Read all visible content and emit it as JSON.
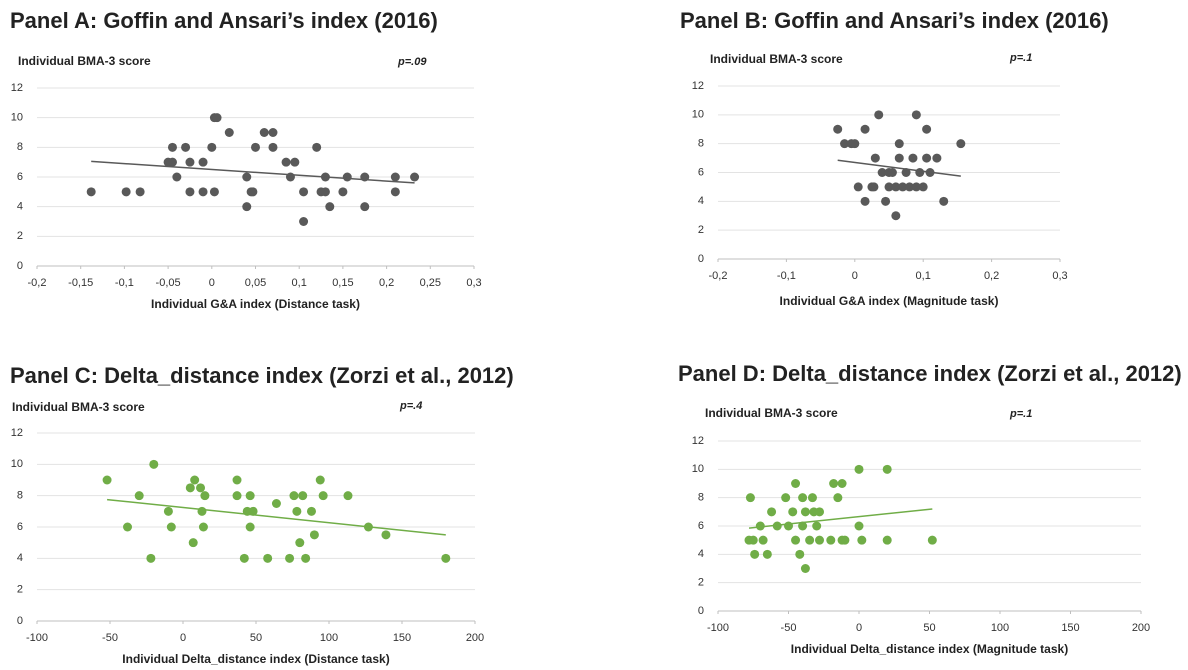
{
  "chart_data": [
    {
      "type": "scatter",
      "title": "Panel A: Goffin and Ansari’s index (2016)",
      "y_label": "Individual BMA-3 score",
      "annotation": "p=.09",
      "x_label": "Individual G&A index (Distance task)",
      "color": "#595959",
      "x": [
        -0.138,
        -0.098,
        -0.082,
        -0.05,
        -0.045,
        -0.045,
        -0.04,
        -0.03,
        -0.025,
        -0.025,
        -0.01,
        -0.01,
        0,
        0.003,
        0.003,
        0.006,
        0.02,
        0.04,
        0.04,
        0.045,
        0.047,
        0.05,
        0.06,
        0.07,
        0.07,
        0.085,
        0.09,
        0.095,
        0.105,
        0.105,
        0.12,
        0.125,
        0.13,
        0.13,
        0.135,
        0.15,
        0.155,
        0.175,
        0.175,
        0.21,
        0.21,
        0.232
      ],
      "values": [
        5,
        5,
        5,
        7,
        7,
        8,
        6,
        8,
        5,
        7,
        7,
        5,
        8,
        10,
        5,
        10,
        9,
        4,
        6,
        5,
        5,
        8,
        9,
        9,
        8,
        7,
        6,
        7,
        3,
        5,
        8,
        5,
        5,
        6,
        4,
        5,
        6,
        4,
        6,
        6,
        5,
        6
      ],
      "trendline": {
        "x": [
          -0.138,
          0.232
        ],
        "values": [
          7.05,
          5.6
        ]
      },
      "xlim": [
        -0.2,
        0.3
      ],
      "ylim": [
        0,
        12
      ],
      "xticks": [
        {
          "value": -0.2,
          "label": "-0,2"
        },
        {
          "value": -0.15,
          "label": "-0,15"
        },
        {
          "value": -0.1,
          "label": "-0,1"
        },
        {
          "value": -0.05,
          "label": "-0,05"
        },
        0,
        {
          "value": 0.05,
          "label": "0,05"
        },
        {
          "value": 0.1,
          "label": "0,1"
        },
        {
          "value": 0.15,
          "label": "0,15"
        },
        {
          "value": 0.2,
          "label": "0,2"
        },
        {
          "value": 0.25,
          "label": "0,25"
        },
        {
          "value": 0.3,
          "label": "0,3"
        }
      ],
      "yticks": [
        0,
        2,
        4,
        6,
        8,
        10,
        12
      ],
      "grid": true
    },
    {
      "type": "scatter",
      "title": "Panel B: Goffin and Ansari’s index (2016)",
      "y_label": "Individual BMA-3 score",
      "annotation": "p=.1",
      "x_label": "Individual G&A index (Magnitude task)",
      "color": "#595959",
      "x": [
        -0.025,
        -0.015,
        -0.005,
        0,
        0.005,
        0.015,
        0.015,
        0.025,
        0.028,
        0.03,
        0.035,
        0.04,
        0.045,
        0.05,
        0.05,
        0.055,
        0.06,
        0.06,
        0.065,
        0.065,
        0.07,
        0.075,
        0.08,
        0.085,
        0.09,
        0.09,
        0.095,
        0.1,
        0.105,
        0.105,
        0.11,
        0.12,
        0.13,
        0.155
      ],
      "values": [
        9,
        8,
        8,
        8,
        5,
        9,
        4,
        5,
        5,
        7,
        10,
        6,
        4,
        6,
        5,
        6,
        5,
        3,
        8,
        7,
        5,
        6,
        5,
        7,
        10,
        5,
        6,
        5,
        7,
        9,
        6,
        7,
        4,
        8
      ],
      "trendline": {
        "x": [
          -0.025,
          0.155
        ],
        "values": [
          6.85,
          5.75
        ]
      },
      "xlim": [
        -0.2,
        0.3
      ],
      "ylim": [
        0,
        12
      ],
      "xticks": [
        {
          "value": -0.2,
          "label": "-0,2"
        },
        {
          "value": -0.1,
          "label": "-0,1"
        },
        0,
        {
          "value": 0.1,
          "label": "0,1"
        },
        {
          "value": 0.2,
          "label": "0,2"
        },
        {
          "value": 0.3,
          "label": "0,3"
        }
      ],
      "yticks": [
        0,
        2,
        4,
        6,
        8,
        10,
        12
      ],
      "grid": true
    },
    {
      "type": "scatter",
      "title": "Panel C: Delta_distance index (Zorzi et al., 2012)",
      "y_label": "Individual BMA-3 score",
      "annotation": "p=.4",
      "x_label": "Individual Delta_distance index (Distance task)",
      "color": "#70ad47",
      "x": [
        -52,
        -38,
        -30,
        -22,
        -20,
        -10,
        -8,
        5,
        7,
        8,
        12,
        13,
        14,
        15,
        37,
        37,
        42,
        44,
        46,
        46,
        48,
        58,
        64,
        73,
        76,
        78,
        80,
        82,
        84,
        88,
        90,
        94,
        96,
        113,
        127,
        139,
        180
      ],
      "values": [
        9,
        6,
        8,
        4,
        10,
        7,
        6,
        8.5,
        5,
        9,
        8.5,
        7,
        6,
        8,
        9,
        8,
        4,
        7,
        8,
        6,
        7,
        4,
        7.5,
        4,
        8,
        7,
        5,
        8,
        4,
        7,
        5.5,
        9,
        8,
        8,
        6,
        5.5,
        4
      ],
      "trendline": {
        "x": [
          -52,
          180
        ],
        "values": [
          7.75,
          5.5
        ]
      },
      "xlim": [
        -100,
        200
      ],
      "ylim": [
        0,
        12
      ],
      "xticks": [
        -100,
        -50,
        0,
        50,
        100,
        150,
        200
      ],
      "yticks": [
        0,
        2,
        4,
        6,
        8,
        10,
        12
      ],
      "grid": true
    },
    {
      "type": "scatter",
      "title": "Panel D: Delta_distance index (Zorzi et al., 2012)",
      "y_label": "Individual BMA-3 score",
      "annotation": "p=.1",
      "x_label": "Individual Delta_distance index (Magnitude task)",
      "color": "#70ad47",
      "x": [
        -78,
        -77,
        -75,
        -74,
        -70,
        -68,
        -65,
        -62,
        -58,
        -52,
        -50,
        -47,
        -45,
        -45,
        -42,
        -40,
        -40,
        -38,
        -38,
        -35,
        -33,
        -32,
        -30,
        -28,
        -28,
        -20,
        -18,
        -15,
        -12,
        -12,
        -10,
        0,
        0,
        2,
        20,
        20,
        52
      ],
      "values": [
        5,
        8,
        5,
        4,
        6,
        5,
        4,
        7,
        6,
        8,
        6,
        7,
        9,
        5,
        4,
        8,
        6,
        7,
        3,
        5,
        8,
        7,
        6,
        7,
        5,
        5,
        9,
        8,
        9,
        5,
        5,
        10,
        6,
        5,
        10,
        5,
        5
      ],
      "trendline": {
        "x": [
          -78,
          52
        ],
        "values": [
          5.85,
          7.2
        ]
      },
      "xlim": [
        -100,
        200
      ],
      "ylim": [
        0,
        12
      ],
      "xticks": [
        -100,
        -50,
        0,
        50,
        100,
        150,
        200
      ],
      "yticks": [
        0,
        2,
        4,
        6,
        8,
        10,
        12
      ],
      "grid": true
    }
  ]
}
